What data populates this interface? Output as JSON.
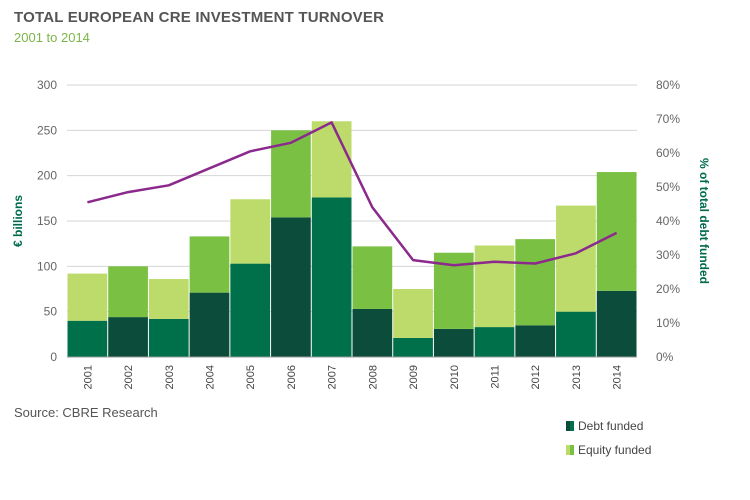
{
  "title": "TOTAL EUROPEAN CRE INVESTMENT TURNOVER",
  "subtitle": "2001 to 2014",
  "source": "Source: CBRE Research",
  "colors": {
    "debt_dark": "#0b4d3a",
    "debt_mid": "#00704a",
    "equity_light": "#bcdb6b",
    "equity_mid": "#7ac143",
    "line": "#8b2a8c",
    "grid": "#d4d4d4",
    "axis_title": "#006a4d"
  },
  "chart_data": {
    "type": "bar",
    "stacked": true,
    "categories": [
      "2001",
      "2002",
      "2003",
      "2004",
      "2005",
      "2006",
      "2007",
      "2008",
      "2009",
      "2010",
      "2011",
      "2012",
      "2013",
      "2014"
    ],
    "series": [
      {
        "name": "Debt funded",
        "values": [
          40,
          44,
          42,
          71,
          103,
          154,
          176,
          53,
          21,
          31,
          33,
          35,
          50,
          73
        ]
      },
      {
        "name": "Equity funded",
        "values": [
          52,
          56,
          44,
          62,
          71,
          96,
          84,
          69,
          54,
          84,
          90,
          95,
          117,
          131
        ]
      },
      {
        "values": [
          45.5,
          48.5,
          50.5,
          55.5,
          60.5,
          63,
          69,
          44,
          28.5,
          27,
          28,
          27.5,
          30.5,
          36.5
        ],
        "axis": "right",
        "type": "line"
      }
    ],
    "ylabel": "€ billions",
    "ylim": [
      0,
      300
    ],
    "yticks": [
      "0",
      "50",
      "100",
      "150",
      "200",
      "250",
      "300"
    ],
    "y2label": "% of total debt funded",
    "y2lim": [
      0,
      80
    ],
    "y2ticks": [
      "0%",
      "10%",
      "20%",
      "30%",
      "40%",
      "50%",
      "60%",
      "70%",
      "80%"
    ],
    "grid": true,
    "legend": "bottom-right",
    "legend_entries": [
      "Debt funded",
      "Equity funded"
    ]
  }
}
